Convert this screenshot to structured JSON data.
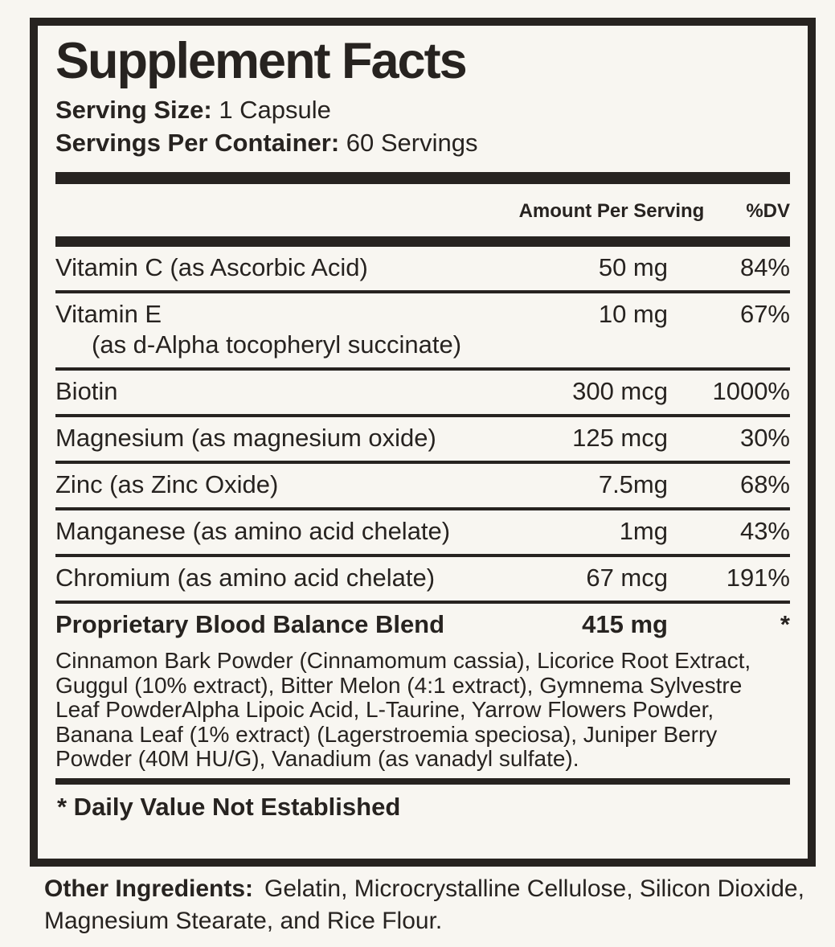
{
  "colors": {
    "ink": "#272320",
    "paper": "#f8f6f1"
  },
  "panel": {
    "title": "Supplement Facts",
    "serving_size_label": "Serving Size:",
    "serving_size_value": "1 Capsule",
    "servings_per_container_label": "Servings Per Container:",
    "servings_per_container_value": "60 Servings"
  },
  "table": {
    "amount_header": "Amount Per Serving",
    "dv_header": "%DV",
    "rows": [
      {
        "name": "Vitamin C (as Ascorbic Acid)",
        "amount": "50 mg",
        "dv": "84%"
      },
      {
        "name": "Vitamin E",
        "indented_line": "(as d-Alpha tocopheryl succinate)",
        "amount": "10 mg",
        "dv": "67%"
      },
      {
        "name": "Biotin",
        "amount": "300 mcg",
        "dv": "1000%"
      },
      {
        "name": "Magnesium (as magnesium oxide)",
        "amount": "125 mcg",
        "dv": "30%"
      },
      {
        "name": "Zinc (as Zinc Oxide)",
        "amount": "7.5mg",
        "dv": "68%"
      },
      {
        "name": "Manganese (as amino acid chelate)",
        "amount": "1mg",
        "dv": "43%"
      },
      {
        "name": "Chromium (as amino acid chelate)",
        "amount": "67 mcg",
        "dv": "191%"
      },
      {
        "name": "Proprietary Blood Balance Blend",
        "amount": "415 mg",
        "dv": "*",
        "bold": true,
        "description": "Cinnamon Bark Powder (Cinnamomum cassia), Licorice Root Extract, Guggul (10% extract), Bitter Melon (4:1 extract), Gymnema Sylvestre Leaf PowderAlpha Lipoic Acid, L-Taurine, Yarrow Flowers Powder, Banana Leaf (1% extract) (Lagerstroemia speciosa), Juniper Berry Powder (40M HU/G), Vanadium (as vanadyl sulfate)."
      }
    ],
    "footnote": "* Daily Value Not Established"
  },
  "other_ingredients": {
    "label": "Other Ingredients:",
    "text": "Gelatin, Microcrystalline Cellulose, Silicon Dioxide, Magnesium Stearate, and Rice Flour."
  }
}
